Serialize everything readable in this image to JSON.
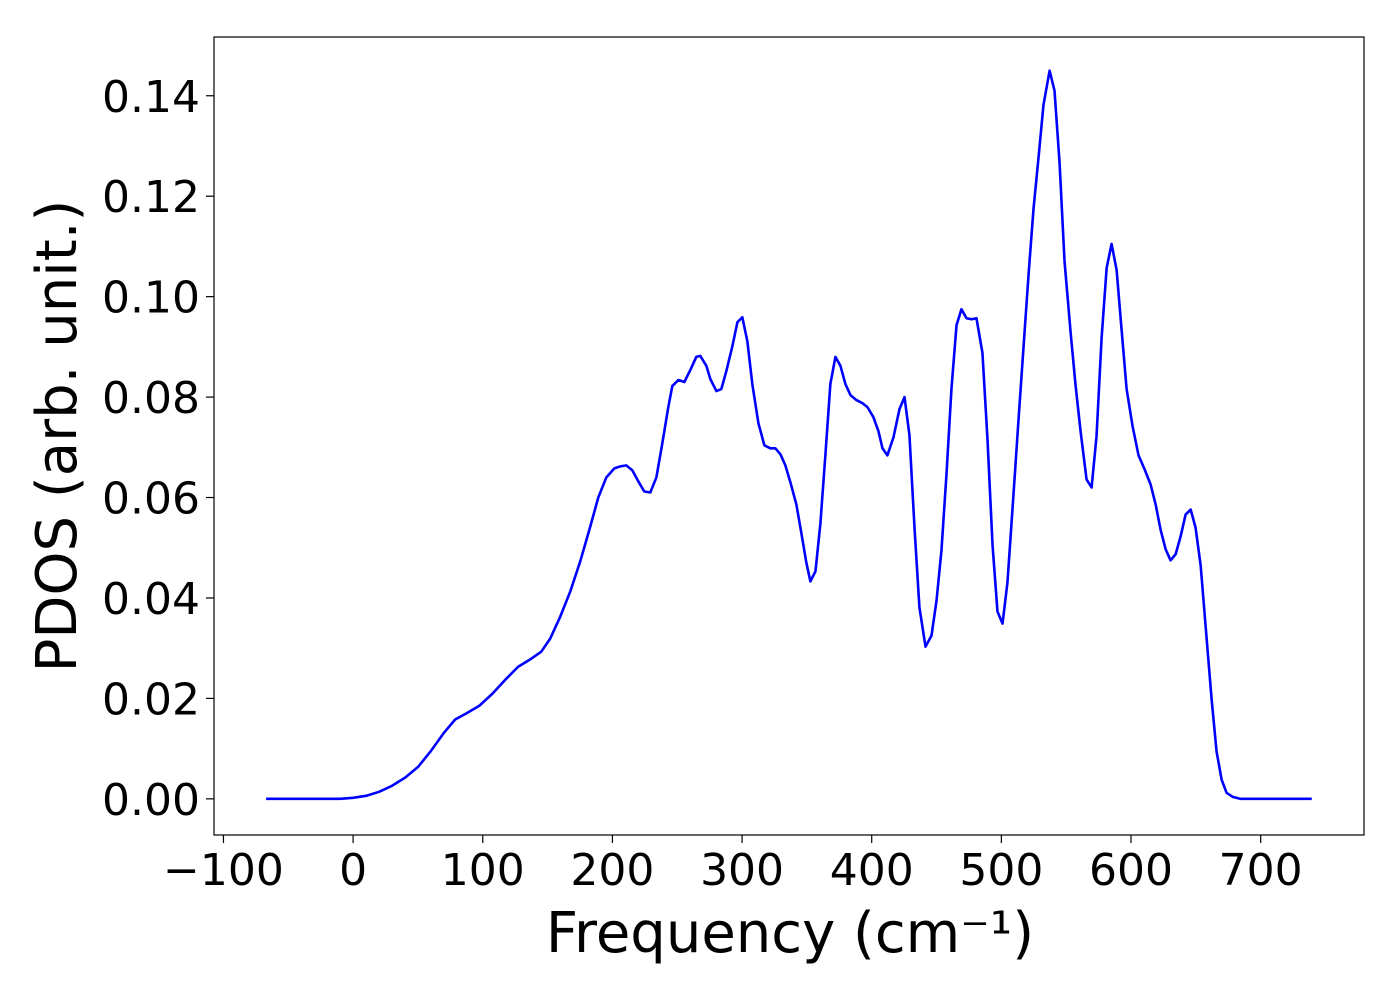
{
  "chart_data": {
    "type": "line",
    "xlabel": "Frequency (cm⁻¹)",
    "ylabel": "PDOS (arb. unit.)",
    "color": "#0000ff",
    "xlim": [
      -107.3,
      779.7
    ],
    "ylim": [
      -0.0072,
      0.1517
    ],
    "xticks": [
      {
        "value": -100,
        "label": "−100"
      },
      0,
      100,
      200,
      300,
      400,
      500,
      600,
      700
    ],
    "yticks": [
      {
        "value": 0,
        "label": "0.00"
      },
      {
        "value": 0.02,
        "label": "0.02"
      },
      {
        "value": 0.04,
        "label": "0.04"
      },
      {
        "value": 0.06,
        "label": "0.06"
      },
      {
        "value": 0.08,
        "label": "0.08"
      },
      {
        "value": 0.1,
        "label": "0.10"
      },
      {
        "value": 0.12,
        "label": "0.12"
      },
      {
        "value": 0.14,
        "label": "0.14"
      }
    ],
    "x": [
      -67.1,
      -10,
      0,
      10,
      20,
      30,
      40,
      50.2,
      60.2,
      70.2,
      78.7,
      87.2,
      97.2,
      107.3,
      117.3,
      127.3,
      137.4,
      145.1,
      152,
      159.8,
      167.5,
      175.2,
      182.9,
      189.1,
      195.3,
      201.5,
      206.1,
      210.7,
      215.4,
      220,
      224.6,
      229.2,
      233.9,
      238.5,
      243.1,
      246.2,
      250.9,
      255.5,
      260.1,
      264.7,
      267.8,
      272.5,
      275.5,
      280.2,
      284,
      287.9,
      292.5,
      296.4,
      300.2,
      304.1,
      307.9,
      312.6,
      317.2,
      321.8,
      325.7,
      329.6,
      333.4,
      337.3,
      341.9,
      345.8,
      349.6,
      352.7,
      356.6,
      360.4,
      364.3,
      368.1,
      372,
      375.9,
      379.7,
      383.6,
      388.2,
      392.8,
      396.7,
      401.3,
      405.2,
      408.3,
      412.1,
      416.8,
      421.4,
      425.3,
      429.1,
      433,
      436.8,
      441.5,
      446.1,
      450,
      453.8,
      457.7,
      461.5,
      465.4,
      469.2,
      473.1,
      477,
      480.8,
      485.4,
      489.3,
      493.2,
      497,
      500.9,
      504.7,
      509.4,
      513.2,
      517.1,
      521,
      524.8,
      528.7,
      532.5,
      537.2,
      541,
      544.9,
      548.7,
      553.4,
      557.2,
      561.1,
      565.7,
      569.6,
      573.4,
      577.3,
      581.2,
      585,
      588.9,
      592.7,
      596.6,
      601.2,
      605.8,
      610.5,
      615.1,
      619,
      622.8,
      626.7,
      630.5,
      634.4,
      638.3,
      642.1,
      646,
      649.8,
      653.7,
      657.5,
      662.2,
      666,
      669.9,
      673.7,
      678.4,
      684.5,
      739.4
    ],
    "values": [
      0,
      0,
      0.0002,
      0.0006,
      0.0014,
      0.0026,
      0.0042,
      0.0064,
      0.0096,
      0.0132,
      0.0158,
      0.017,
      0.0185,
      0.0209,
      0.0237,
      0.0263,
      0.0279,
      0.0293,
      0.0319,
      0.0363,
      0.0413,
      0.0473,
      0.0542,
      0.06,
      0.064,
      0.0658,
      0.0662,
      0.0664,
      0.0654,
      0.0632,
      0.0612,
      0.061,
      0.064,
      0.0708,
      0.078,
      0.0822,
      0.0834,
      0.083,
      0.0854,
      0.088,
      0.0882,
      0.0862,
      0.0836,
      0.0812,
      0.0816,
      0.0852,
      0.0901,
      0.0949,
      0.0959,
      0.0911,
      0.0826,
      0.0748,
      0.0704,
      0.0698,
      0.0698,
      0.0686,
      0.0664,
      0.063,
      0.0586,
      0.0528,
      0.047,
      0.0433,
      0.0453,
      0.0548,
      0.0686,
      0.0826,
      0.088,
      0.0862,
      0.0826,
      0.0804,
      0.0794,
      0.0788,
      0.078,
      0.076,
      0.0732,
      0.0698,
      0.0684,
      0.072,
      0.0776,
      0.08,
      0.0724,
      0.054,
      0.0381,
      0.0303,
      0.0325,
      0.0395,
      0.0495,
      0.0648,
      0.0816,
      0.0943,
      0.0975,
      0.0957,
      0.0955,
      0.0957,
      0.0888,
      0.0716,
      0.0505,
      0.0373,
      0.0349,
      0.0431,
      0.0608,
      0.0754,
      0.09,
      0.1045,
      0.1175,
      0.1278,
      0.1382,
      0.145,
      0.141,
      0.1266,
      0.1071,
      0.0929,
      0.0824,
      0.0732,
      0.0636,
      0.062,
      0.0722,
      0.0917,
      0.1057,
      0.1105,
      0.1053,
      0.0935,
      0.0816,
      0.0742,
      0.0684,
      0.0656,
      0.0626,
      0.0586,
      0.0536,
      0.0497,
      0.0475,
      0.0487,
      0.0523,
      0.0566,
      0.0576,
      0.054,
      0.0465,
      0.0345,
      0.0197,
      0.0094,
      0.0038,
      0.0012,
      0.0004,
      0,
      0
    ]
  }
}
